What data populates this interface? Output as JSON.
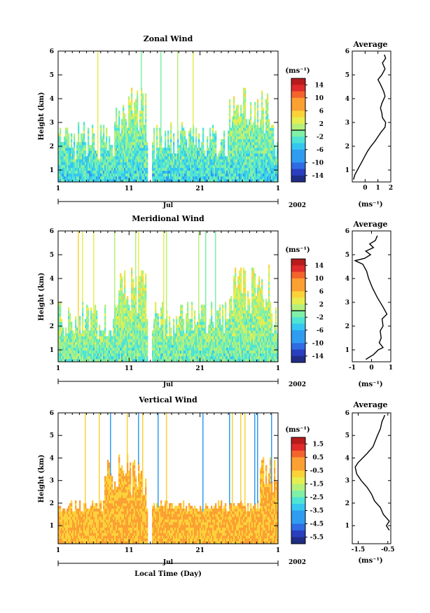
{
  "chart_data": [
    {
      "type": "heatmap",
      "title": "Zonal Wind",
      "ylabel": "Height (km)",
      "ylim": [
        0.5,
        6
      ],
      "yticks": [
        1,
        2,
        3,
        4,
        5,
        6
      ],
      "xlim": [
        1,
        32
      ],
      "xticks": [
        {
          "v": 1,
          "t": "1"
        },
        {
          "v": 11,
          "t": "11"
        },
        {
          "v": 21,
          "t": "21"
        },
        {
          "v": 32,
          "t": "1"
        }
      ],
      "month_label": "Jul",
      "year_label": "2002",
      "colorbar": {
        "unit": "(ms⁻¹)",
        "labels": [
          "14",
          "10",
          "6",
          "2",
          "-2",
          "-6",
          "-10",
          "-14"
        ],
        "range": [
          -16,
          16
        ]
      },
      "profile": {
        "title": "Average",
        "xlabel": "(ms⁻¹)",
        "xlim": [
          -1,
          2
        ],
        "xticks": [
          {
            "v": 0,
            "t": "0"
          },
          {
            "v": 1,
            "t": "1"
          },
          {
            "v": 2,
            "t": "2"
          }
        ],
        "ylim": [
          0.5,
          6
        ],
        "yticks": [
          1,
          2,
          3,
          4,
          5,
          6
        ],
        "points": [
          [
            -0.9,
            0.6
          ],
          [
            -0.8,
            0.8
          ],
          [
            -0.6,
            1.0
          ],
          [
            -0.4,
            1.2
          ],
          [
            -0.2,
            1.4
          ],
          [
            0.0,
            1.6
          ],
          [
            0.2,
            1.8
          ],
          [
            0.45,
            2.0
          ],
          [
            0.75,
            2.2
          ],
          [
            1.0,
            2.4
          ],
          [
            1.25,
            2.6
          ],
          [
            1.55,
            2.8
          ],
          [
            1.6,
            3.0
          ],
          [
            1.35,
            3.2
          ],
          [
            1.3,
            3.4
          ],
          [
            1.2,
            3.6
          ],
          [
            1.3,
            3.8
          ],
          [
            1.55,
            4.1
          ],
          [
            1.45,
            4.3
          ],
          [
            1.2,
            4.6
          ],
          [
            1.0,
            4.8
          ],
          [
            1.3,
            5.0
          ],
          [
            1.55,
            5.25
          ],
          [
            1.35,
            5.5
          ],
          [
            1.6,
            5.7
          ],
          [
            1.5,
            5.85
          ]
        ]
      }
    },
    {
      "type": "heatmap",
      "title": "Meridional Wind",
      "ylabel": "Height (km)",
      "ylim": [
        0.5,
        6
      ],
      "yticks": [
        1,
        2,
        3,
        4,
        5,
        6
      ],
      "xlim": [
        1,
        32
      ],
      "xticks": [
        {
          "v": 1,
          "t": "1"
        },
        {
          "v": 11,
          "t": "11"
        },
        {
          "v": 21,
          "t": "21"
        },
        {
          "v": 32,
          "t": "1"
        }
      ],
      "month_label": "Jul",
      "year_label": "2002",
      "colorbar": {
        "unit": "(ms⁻¹)",
        "labels": [
          "14",
          "10",
          "6",
          "2",
          "-2",
          "-6",
          "-10",
          "-14"
        ],
        "range": [
          -16,
          16
        ]
      },
      "profile": {
        "title": "Average",
        "xlabel": "(ms⁻¹)",
        "xlim": [
          -1,
          1
        ],
        "xticks": [
          {
            "v": -1,
            "t": "-1"
          },
          {
            "v": 0,
            "t": "0"
          },
          {
            "v": 1,
            "t": "1"
          }
        ],
        "ylim": [
          0.5,
          6
        ],
        "yticks": [
          1,
          2,
          3,
          4,
          5,
          6
        ],
        "points": [
          [
            -0.3,
            0.6
          ],
          [
            0.1,
            0.8
          ],
          [
            0.35,
            1.0
          ],
          [
            0.6,
            1.1
          ],
          [
            0.4,
            1.3
          ],
          [
            0.5,
            1.5
          ],
          [
            0.45,
            1.8
          ],
          [
            0.6,
            2.0
          ],
          [
            0.55,
            2.3
          ],
          [
            0.8,
            2.5
          ],
          [
            0.6,
            2.8
          ],
          [
            0.3,
            3.2
          ],
          [
            0.05,
            3.6
          ],
          [
            -0.15,
            4.0
          ],
          [
            -0.25,
            4.3
          ],
          [
            -0.45,
            4.6
          ],
          [
            -0.85,
            4.75
          ],
          [
            -0.35,
            4.85
          ],
          [
            -0.05,
            5.0
          ],
          [
            -0.3,
            5.15
          ],
          [
            0.1,
            5.3
          ],
          [
            -0.1,
            5.45
          ],
          [
            0.2,
            5.6
          ],
          [
            0.3,
            5.8
          ]
        ]
      }
    },
    {
      "type": "heatmap",
      "title": "Vertical Wind",
      "ylabel": "Height (km)",
      "xlabel": "Local Time (Day)",
      "ylim": [
        0.2,
        6
      ],
      "yticks": [
        1,
        2,
        3,
        4,
        5,
        6
      ],
      "xlim": [
        1,
        32
      ],
      "xticks": [
        {
          "v": 1,
          "t": "1"
        },
        {
          "v": 11,
          "t": "11"
        },
        {
          "v": 21,
          "t": "21"
        },
        {
          "v": 32,
          "t": "1"
        }
      ],
      "month_label": "Jul",
      "year_label": "2002",
      "colorbar": {
        "unit": "(ms⁻¹)",
        "labels": [
          "1.5",
          "0.5",
          "-0.5",
          "-1.5",
          "-2.5",
          "-3.5",
          "-4.5",
          "-5.5"
        ],
        "range": [
          -6,
          2
        ]
      },
      "profile": {
        "title": "Average",
        "xlabel": "(ms⁻¹)",
        "xlim": [
          -1.7,
          -0.4
        ],
        "xticks": [
          {
            "v": -1.5,
            "t": "-1.5"
          },
          {
            "v": -0.5,
            "t": "-0.5"
          }
        ],
        "ylim": [
          0.2,
          6
        ],
        "yticks": [
          1,
          2,
          3,
          4,
          5,
          6
        ],
        "points": [
          [
            -0.45,
            0.8
          ],
          [
            -0.55,
            1.0
          ],
          [
            -0.45,
            1.2
          ],
          [
            -0.65,
            1.5
          ],
          [
            -0.75,
            1.8
          ],
          [
            -0.95,
            2.1
          ],
          [
            -1.05,
            2.4
          ],
          [
            -1.2,
            2.7
          ],
          [
            -1.4,
            3.0
          ],
          [
            -1.55,
            3.3
          ],
          [
            -1.6,
            3.6
          ],
          [
            -1.5,
            3.8
          ],
          [
            -1.35,
            4.0
          ],
          [
            -1.2,
            4.2
          ],
          [
            -1.0,
            4.5
          ],
          [
            -0.85,
            5.0
          ],
          [
            -0.75,
            5.3
          ],
          [
            -0.7,
            5.6
          ],
          [
            -0.6,
            5.9
          ]
        ]
      }
    }
  ]
}
